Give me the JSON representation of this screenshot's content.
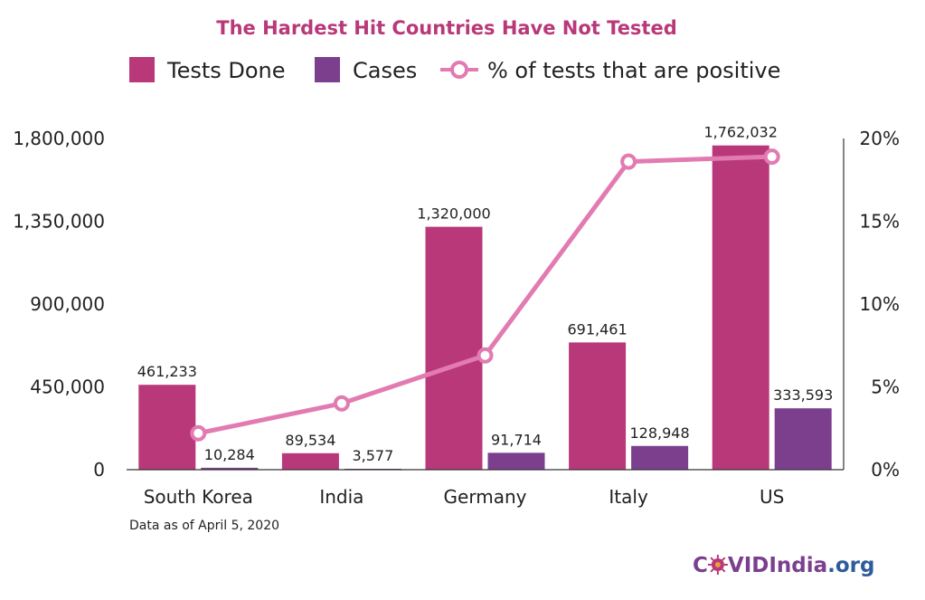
{
  "chart_data": {
    "type": "bar",
    "title": "The Hardest Hit Countries Have Not Tested",
    "categories": [
      "South Korea",
      "India",
      "Germany",
      "Italy",
      "US"
    ],
    "series": [
      {
        "name": "Tests Done",
        "kind": "bar",
        "axis": "left",
        "color": "#b8387a",
        "values": [
          461233,
          89534,
          1320000,
          691461,
          1762032
        ],
        "labels": [
          "461,233",
          "89,534",
          "1,320,000",
          "691,461",
          "1,762,032"
        ]
      },
      {
        "name": "Cases",
        "kind": "bar",
        "axis": "left",
        "color": "#7b3f8e",
        "values": [
          10284,
          3577,
          91714,
          128948,
          333593
        ],
        "labels": [
          "10,284",
          "3,577",
          "91,714",
          "128,948",
          "333,593"
        ]
      },
      {
        "name": "% of tests that are positive",
        "kind": "line",
        "axis": "right",
        "color": "#e27bb1",
        "values": [
          2.2,
          4.0,
          6.9,
          18.6,
          18.9
        ]
      }
    ],
    "y_left": {
      "ylim": [
        0,
        1800000
      ],
      "ticks": [
        0,
        450000,
        900000,
        1350000,
        1800000
      ],
      "tick_labels": [
        "0",
        "450,000",
        "900,000",
        "1,350,000",
        "1,800,000"
      ]
    },
    "y_right": {
      "ylim": [
        0,
        20
      ],
      "ticks": [
        0,
        5,
        10,
        15,
        20
      ],
      "tick_labels": [
        "0%",
        "5%",
        "10%",
        "15%",
        "20%"
      ]
    },
    "legend_position": "top-center",
    "grid": false
  },
  "footnote": "Data as of April 5, 2020",
  "brand": {
    "part1": "C",
    "part2": "VIDIndia",
    "part3": ".org",
    "color_dark": "#7b3f8e",
    "color_accent": "#b8387a",
    "color_tld": "#2e5b9a"
  }
}
